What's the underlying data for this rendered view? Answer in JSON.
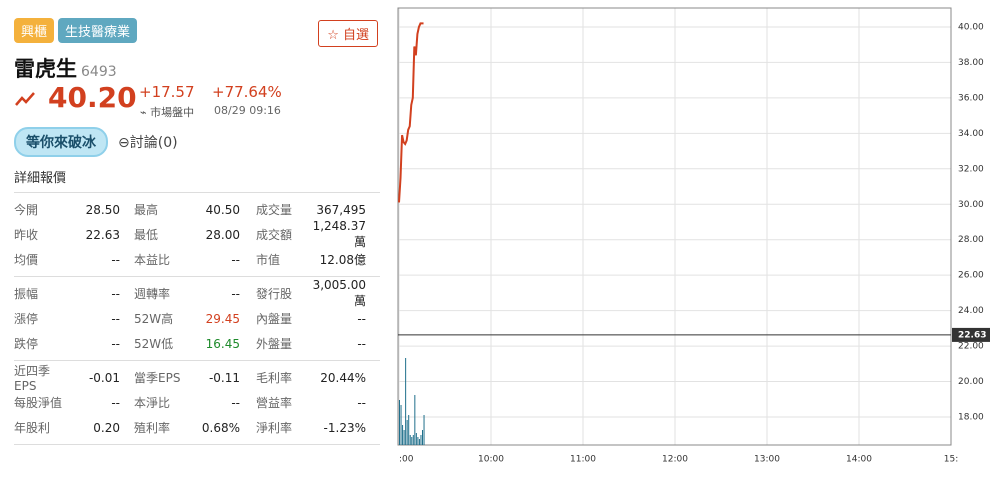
{
  "header": {
    "tags": [
      "興櫃",
      "生技醫療業"
    ],
    "watch_button": "自選",
    "name": "雷虎生",
    "code": "6493",
    "price": "40.20",
    "change": "+17.57",
    "change_percent": "+77.64%",
    "status": "市場盤中",
    "time": "08/29 09:16",
    "ice_button": "等你來破冰",
    "discussion": "討論(0)"
  },
  "quote_table": {
    "title": "詳細報價",
    "groups": [
      [
        [
          "今開",
          "28.50",
          "最高",
          "40.50",
          "成交量",
          "367,495"
        ],
        [
          "昨收",
          "22.63",
          "最低",
          "28.00",
          "成交額",
          "1,248.37萬"
        ],
        [
          "均價",
          "--",
          "本益比",
          "--",
          "市值",
          "12.08億"
        ]
      ],
      [
        [
          "振幅",
          "--",
          "週轉率",
          "--",
          "發行股",
          "3,005.00萬"
        ],
        [
          "漲停",
          "--",
          "52W高",
          "29.45",
          "內盤量",
          "--"
        ],
        [
          "跌停",
          "--",
          "52W低",
          "16.45",
          "外盤量",
          "--"
        ]
      ],
      [
        [
          "近四季EPS",
          "-0.01",
          "當季EPS",
          "-0.11",
          "毛利率",
          "20.44%"
        ],
        [
          "每股淨值",
          "--",
          "本淨比",
          "--",
          "營益率",
          "--"
        ],
        [
          "年股利",
          "0.20",
          "殖利率",
          "0.68%",
          "淨利率",
          "-1.23%"
        ]
      ]
    ]
  },
  "chart_data": {
    "type": "line",
    "x": [
      0,
      1,
      2,
      3,
      4,
      5,
      6,
      7,
      8,
      9,
      10,
      11,
      12,
      13,
      14,
      15,
      16
    ],
    "series": [
      {
        "name": "price",
        "color": "#d2401f",
        "values": [
          30.1,
          31.5,
          33.9,
          33.5,
          33.4,
          33.6,
          34.2,
          34.4,
          35.6,
          36.0,
          38.9,
          38.4,
          39.6,
          40.0,
          40.2,
          40.2,
          40.2
        ]
      },
      {
        "name": "volume",
        "color": "#1f6f8b",
        "axis": "y2",
        "values": [
          45,
          40,
          20,
          15,
          87,
          25,
          30,
          10,
          8,
          10,
          50,
          12,
          8,
          6,
          10,
          15,
          30
        ]
      }
    ],
    "xlim": [
      0,
      360
    ],
    "xticks": [
      {
        "value": 0,
        "label": ":00"
      },
      {
        "value": 60,
        "label": "10:00"
      },
      {
        "value": 120,
        "label": "11:00"
      },
      {
        "value": 180,
        "label": "12:00"
      },
      {
        "value": 240,
        "label": "13:00"
      },
      {
        "value": 300,
        "label": "14:00"
      },
      {
        "value": 360,
        "label": "15:"
      }
    ],
    "ylim": [
      16.42,
      41.07
    ],
    "yticks": [
      {
        "value": 18,
        "label": "18.00"
      },
      {
        "value": 20,
        "label": "20.00"
      },
      {
        "value": 22,
        "label": "22.00"
      },
      {
        "value": 24,
        "label": "24.00"
      },
      {
        "value": 26,
        "label": "26.00"
      },
      {
        "value": 28,
        "label": "28.00"
      },
      {
        "value": 30,
        "label": "30.00"
      },
      {
        "value": 32,
        "label": "32.00"
      },
      {
        "value": 34,
        "label": "34.00"
      },
      {
        "value": 36,
        "label": "36.00"
      },
      {
        "value": 38,
        "label": "38.00"
      },
      {
        "value": 40,
        "label": "40.00"
      }
    ],
    "y2lim": [
      0,
      100
    ],
    "reference_line": 22.63,
    "grid": true
  }
}
